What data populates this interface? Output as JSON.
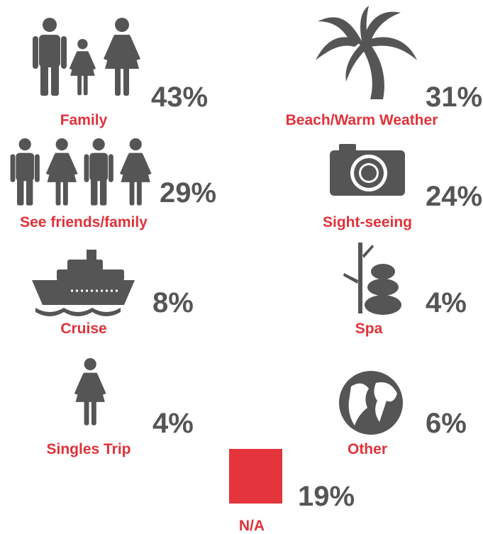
{
  "items": [
    {
      "label": "Family",
      "value": "43%"
    },
    {
      "label": "Beach/Warm Weather",
      "value": "31%"
    },
    {
      "label": "See friends/family",
      "value": "29%"
    },
    {
      "label": "Sight-seeing",
      "value": "24%"
    },
    {
      "label": "Cruise",
      "value": "8%"
    },
    {
      "label": "Spa",
      "value": "4%"
    },
    {
      "label": "Singles Trip",
      "value": "4%"
    },
    {
      "label": "Other",
      "value": "6%"
    },
    {
      "label": "N/A",
      "value": "19%"
    }
  ]
}
